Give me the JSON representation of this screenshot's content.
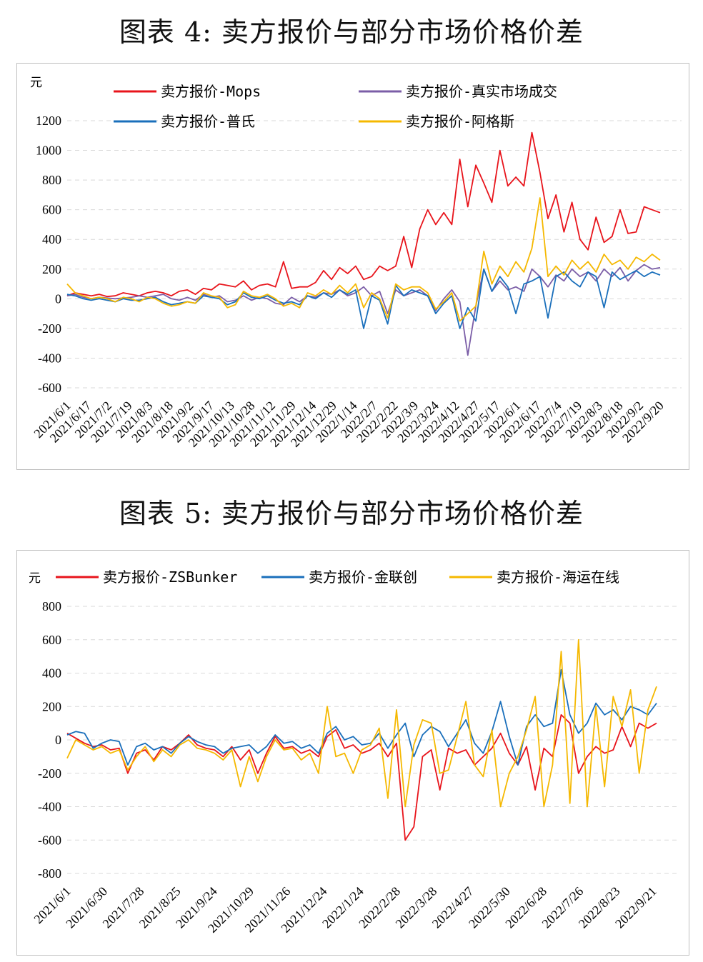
{
  "figure4": {
    "title": "图表 4:  卖方报价与部分市场价格价差",
    "chart_data": {
      "type": "line",
      "ylabel": "元",
      "ylim": [
        -600,
        1200
      ],
      "yticks": [
        1200,
        1000,
        800,
        600,
        400,
        200,
        0,
        -200,
        -400,
        -600
      ],
      "grid": true,
      "legend_position": "top",
      "x_labels": [
        "2021/6/1",
        "2021/6/17",
        "2021/7/2",
        "2021/7/19",
        "2021/8/3",
        "2021/8/18",
        "2021/9/2",
        "2021/9/17",
        "2021/10/13",
        "2021/10/28",
        "2021/11/12",
        "2021/11/29",
        "2021/12/14",
        "2021/12/29",
        "2022/1/14",
        "2022/2/7",
        "2022/2/22",
        "2022/3/9",
        "2022/3/24",
        "2022/4/12",
        "2022/4/27",
        "2022/5/17",
        "2022/6/1",
        "2022/6/17",
        "2022/7/4",
        "2022/7/19",
        "2022/8/3",
        "2022/8/18",
        "2022/9/2",
        "2022/9/20"
      ],
      "series": [
        {
          "name": "卖方报价-Mops",
          "color": "#e8141b",
          "values": [
            20,
            40,
            30,
            20,
            30,
            15,
            20,
            40,
            30,
            20,
            40,
            50,
            40,
            20,
            50,
            60,
            30,
            70,
            60,
            100,
            90,
            80,
            120,
            60,
            90,
            100,
            80,
            250,
            70,
            80,
            80,
            110,
            190,
            130,
            210,
            170,
            220,
            130,
            150,
            220,
            190,
            220,
            420,
            210,
            470,
            600,
            500,
            580,
            500,
            940,
            620,
            900,
            780,
            650,
            1000,
            760,
            820,
            760,
            1120,
            850,
            540,
            700,
            450,
            650,
            400,
            330,
            550,
            380,
            420,
            600,
            440,
            450,
            620,
            600,
            580
          ]
        },
        {
          "name": "卖方报价-真实市场成交",
          "color": "#7b5ea7",
          "values": [
            20,
            30,
            10,
            0,
            10,
            5,
            0,
            5,
            10,
            20,
            10,
            20,
            30,
            0,
            -10,
            10,
            -10,
            30,
            10,
            20,
            -20,
            -10,
            20,
            -10,
            10,
            0,
            -30,
            -40,
            10,
            -20,
            20,
            10,
            40,
            30,
            60,
            20,
            40,
            80,
            20,
            50,
            -100,
            60,
            20,
            40,
            60,
            20,
            -80,
            0,
            60,
            -20,
            -380,
            -50,
            200,
            50,
            120,
            60,
            80,
            50,
            200,
            150,
            80,
            160,
            120,
            200,
            150,
            180,
            120,
            200,
            150,
            210,
            120,
            190,
            230,
            200,
            210
          ]
        },
        {
          "name": "卖方报价-普氏",
          "color": "#1a6fbb",
          "values": [
            30,
            20,
            0,
            -10,
            0,
            -10,
            -20,
            0,
            -10,
            -10,
            0,
            10,
            -20,
            -40,
            -30,
            -20,
            -30,
            20,
            10,
            0,
            -40,
            -20,
            40,
            10,
            0,
            20,
            -10,
            -30,
            -20,
            -40,
            20,
            0,
            40,
            10,
            60,
            30,
            60,
            -200,
            20,
            -10,
            -170,
            90,
            20,
            60,
            40,
            20,
            -100,
            -30,
            20,
            -200,
            -60,
            -150,
            200,
            50,
            150,
            80,
            -100,
            100,
            120,
            150,
            -130,
            150,
            180,
            120,
            80,
            180,
            150,
            -60,
            180,
            130,
            160,
            190,
            150,
            180,
            160
          ]
        },
        {
          "name": "卖方报价-阿格斯",
          "color": "#f5b800",
          "values": [
            100,
            40,
            20,
            0,
            10,
            0,
            -20,
            10,
            0,
            -20,
            10,
            0,
            -30,
            -50,
            -40,
            -20,
            -30,
            40,
            20,
            10,
            -60,
            -40,
            50,
            20,
            10,
            30,
            0,
            -50,
            -30,
            -60,
            40,
            20,
            60,
            30,
            90,
            40,
            100,
            -60,
            40,
            0,
            -130,
            100,
            60,
            80,
            80,
            40,
            -70,
            -20,
            40,
            -150,
            -100,
            -50,
            320,
            100,
            220,
            150,
            250,
            180,
            340,
            680,
            150,
            220,
            160,
            260,
            200,
            250,
            180,
            300,
            230,
            260,
            200,
            280,
            250,
            300,
            260
          ]
        }
      ]
    }
  },
  "figure5": {
    "title": "图表 5:  卖方报价与部分市场价格价差",
    "chart_data": {
      "type": "line",
      "ylabel": "元",
      "ylim": [
        -800,
        800
      ],
      "yticks": [
        800,
        600,
        400,
        200,
        0,
        -200,
        -400,
        -600,
        -800
      ],
      "grid": true,
      "legend_position": "top",
      "x_labels": [
        "2021/6/1",
        "2021/6/30",
        "2021/7/28",
        "2021/8/25",
        "2021/9/24",
        "2021/10/29",
        "2021/11/26",
        "2021/12/24",
        "2022/1/24",
        "2022/2/28",
        "2022/3/28",
        "2022/4/27",
        "2022/5/30",
        "2022/6/28",
        "2022/7/26",
        "2022/8/23",
        "2022/9/21"
      ],
      "series": [
        {
          "name": "卖方报价-ZSBunker",
          "color": "#e8141b",
          "values": [
            40,
            10,
            -20,
            -40,
            -30,
            -60,
            -50,
            -200,
            -80,
            -60,
            -120,
            -40,
            -60,
            -20,
            30,
            -30,
            -50,
            -60,
            -100,
            -40,
            -120,
            -60,
            -200,
            -80,
            20,
            -50,
            -40,
            -80,
            -60,
            -100,
            20,
            60,
            -50,
            -30,
            -80,
            -60,
            -20,
            -100,
            -20,
            -600,
            -520,
            -100,
            -60,
            -300,
            -50,
            -80,
            -60,
            -150,
            -100,
            -50,
            40,
            -80,
            -150,
            -40,
            -300,
            -50,
            -100,
            150,
            100,
            -200,
            -100,
            -40,
            -80,
            -60,
            80,
            -40,
            100,
            70,
            100
          ]
        },
        {
          "name": "卖方报价-金联创",
          "color": "#1a6fbb",
          "values": [
            30,
            50,
            40,
            -50,
            -20,
            0,
            -10,
            -150,
            -40,
            -20,
            -60,
            -40,
            -80,
            -20,
            20,
            -10,
            -30,
            -40,
            -80,
            -50,
            -40,
            -30,
            -80,
            -40,
            30,
            -20,
            -10,
            -50,
            -30,
            -80,
            40,
            80,
            0,
            20,
            -30,
            -20,
            40,
            -50,
            30,
            100,
            -100,
            30,
            80,
            50,
            -40,
            40,
            120,
            -20,
            -80,
            50,
            230,
            20,
            -150,
            80,
            150,
            80,
            100,
            420,
            150,
            40,
            100,
            220,
            150,
            180,
            120,
            200,
            180,
            150,
            220
          ]
        },
        {
          "name": "卖方报价-海运在线",
          "color": "#f5b800",
          "values": [
            -110,
            0,
            -30,
            -60,
            -40,
            -80,
            -60,
            -180,
            -100,
            -40,
            -130,
            -60,
            -100,
            -30,
            0,
            -50,
            -60,
            -80,
            -120,
            -60,
            -280,
            -100,
            -250,
            -100,
            0,
            -60,
            -50,
            -120,
            -80,
            -200,
            200,
            -100,
            -80,
            -200,
            -60,
            -30,
            70,
            -350,
            180,
            -400,
            -30,
            120,
            100,
            -200,
            -180,
            20,
            230,
            -150,
            -220,
            60,
            -400,
            -200,
            -100,
            60,
            260,
            -400,
            -150,
            530,
            -380,
            600,
            -400,
            200,
            -280,
            260,
            80,
            300,
            -200,
            180,
            320
          ]
        }
      ]
    }
  }
}
